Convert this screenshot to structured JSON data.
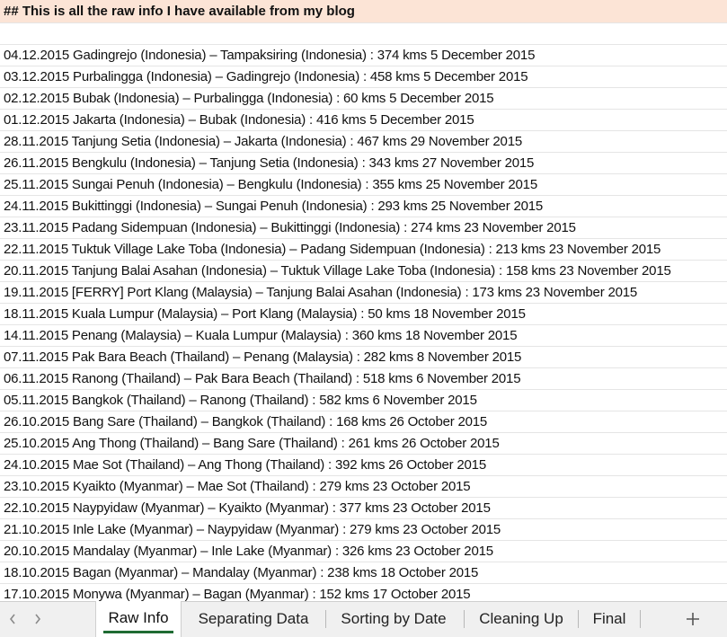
{
  "header_text": "## This is all the raw info I have available from my blog",
  "rows": [
    "04.12.2015 Gadingrejo (Indonesia) – Tampaksiring (Indonesia) : 374 kms 5 December 2015",
    "03.12.2015 Purbalingga (Indonesia) – Gadingrejo (Indonesia) : 458 kms 5 December 2015",
    "02.12.2015 Bubak (Indonesia) – Purbalingga (Indonesia) : 60 kms 5 December 2015",
    "01.12.2015 Jakarta (Indonesia) – Bubak (Indonesia) : 416 kms 5 December 2015",
    "28.11.2015 Tanjung Setia (Indonesia) – Jakarta (Indonesia) : 467 kms 29 November 2015",
    "26.11.2015 Bengkulu (Indonesia) – Tanjung Setia (Indonesia) : 343 kms 27 November 2015",
    "25.11.2015 Sungai Penuh (Indonesia) – Bengkulu (Indonesia) : 355 kms 25 November 2015",
    "24.11.2015 Bukittinggi (Indonesia) – Sungai Penuh (Indonesia) : 293 kms 25 November 2015",
    "23.11.2015 Padang Sidempuan (Indonesia) – Bukittinggi (Indonesia) : 274 kms 23 November 2015",
    "22.11.2015 Tuktuk Village Lake Toba (Indonesia) – Padang Sidempuan (Indonesia) : 213 kms 23 November 2015",
    "20.11.2015 Tanjung Balai Asahan (Indonesia) – Tuktuk Village Lake Toba (Indonesia) : 158 kms 23 November 2015",
    "19.11.2015 [FERRY] Port Klang (Malaysia) – Tanjung Balai Asahan (Indonesia) : 173 kms 23 November 2015",
    "18.11.2015 Kuala Lumpur (Malaysia) – Port Klang (Malaysia) : 50 kms 18 November 2015",
    "14.11.2015 Penang (Malaysia) – Kuala Lumpur (Malaysia) : 360 kms 18 November 2015",
    "07.11.2015 Pak Bara Beach (Thailand) – Penang (Malaysia) : 282 kms 8 November 2015",
    "06.11.2015 Ranong (Thailand) – Pak Bara Beach (Thailand) : 518 kms 6 November 2015",
    "05.11.2015 Bangkok (Thailand) – Ranong (Thailand) : 582 kms 6 November 2015",
    "26.10.2015 Bang Sare (Thailand) – Bangkok (Thailand) : 168 kms 26 October 2015",
    "25.10.2015 Ang Thong (Thailand) – Bang Sare (Thailand) : 261 kms 26 October 2015",
    "24.10.2015 Mae Sot (Thailand) – Ang Thong (Thailand) : 392 kms 26 October 2015",
    "23.10.2015 Kyaikto (Myanmar) – Mae Sot (Thailand) : 279 kms 23 October 2015",
    "22.10.2015 Naypyidaw (Myanmar) – Kyaikto (Myanmar) : 377 kms 23 October 2015",
    "21.10.2015 Inle Lake (Myanmar) – Naypyidaw (Myanmar) : 279 kms 23 October 2015",
    "20.10.2015 Mandalay (Myanmar) – Inle Lake (Myanmar) : 326 kms 23 October 2015",
    "18.10.2015 Bagan (Myanmar) – Mandalay (Myanmar) : 238 kms 18 October 2015",
    "17.10.2015 Monywa (Myanmar) – Bagan (Myanmar) : 152 kms 17 October 2015"
  ],
  "tabs": {
    "raw_info": "Raw Info",
    "separating_data": "Separating Data",
    "sorting_by_date": "Sorting by Date",
    "cleaning_up": "Cleaning Up",
    "final": "Final"
  },
  "icons": {
    "prev": "chevron-left-icon",
    "next": "chevron-right-icon",
    "add": "plus-icon"
  },
  "colors": {
    "header_bg": "#fce4d6",
    "active_tab_accent": "#1f6b33"
  }
}
